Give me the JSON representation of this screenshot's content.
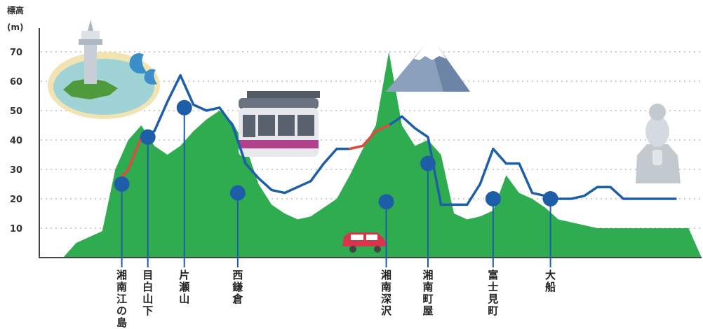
{
  "chart_data": {
    "type": "area",
    "title": "",
    "ylabel_lines": [
      "標高",
      "(m)"
    ],
    "xlabel": "",
    "ylim": [
      0,
      75
    ],
    "yticks": [
      10,
      20,
      30,
      40,
      50,
      60,
      70
    ],
    "grid": true,
    "terrain": {
      "x": [
        0,
        1,
        2,
        3,
        4,
        5,
        6,
        7,
        8,
        9,
        10,
        11,
        12,
        13,
        14,
        15,
        16,
        17,
        18,
        19,
        20,
        21,
        22,
        23,
        24,
        25,
        26,
        27,
        28,
        29,
        30,
        31,
        32,
        33,
        34,
        35,
        36,
        37,
        38,
        39,
        40,
        41,
        42,
        43,
        44,
        45,
        46,
        47,
        48,
        49
      ],
      "values": [
        0,
        5,
        7,
        9,
        30,
        40,
        45,
        38,
        35,
        38,
        43,
        47,
        50,
        46,
        38,
        25,
        18,
        15,
        13,
        14,
        17,
        20,
        28,
        37,
        45,
        70,
        45,
        38,
        40,
        35,
        15,
        13,
        14,
        16,
        28,
        22,
        20,
        17,
        13,
        12,
        11,
        10,
        10,
        10,
        10,
        10,
        10,
        10,
        10,
        0
      ],
      "color": "#2eac4f"
    },
    "track": {
      "values": [
        null,
        null,
        null,
        null,
        25,
        30,
        41,
        43,
        53,
        62,
        52,
        50,
        51,
        45,
        32,
        27,
        23,
        22,
        24,
        26,
        32,
        37,
        37,
        38,
        43,
        45,
        48,
        44,
        41,
        18,
        18,
        18,
        25,
        37,
        32,
        32,
        22,
        21,
        20,
        20,
        21,
        24,
        24,
        20,
        20,
        20,
        20,
        20,
        null,
        null
      ],
      "color": "#1e5ea8",
      "tunnel_color": "#e44b3c"
    },
    "stations": [
      "湘南江の島",
      "目白山下",
      "片瀬山",
      "西鎌倉",
      "湘南深沢",
      "湘南町屋",
      "富士見町",
      "大船"
    ],
    "station_x": [
      4.5,
      6.5,
      9.3,
      13.4,
      24.8,
      28.0,
      33.0,
      37.4
    ],
    "station_values": [
      25,
      41,
      51,
      22,
      19,
      32,
      20,
      20
    ],
    "station_color": "#1e5ea8"
  },
  "illustrations": [
    {
      "name": "enoshima-island-illustration",
      "desc": "lighthouse island"
    },
    {
      "name": "monorail-car-illustration",
      "desc": "suspended monorail"
    },
    {
      "name": "mount-fuji-illustration",
      "desc": "mountain"
    },
    {
      "name": "red-car-illustration",
      "desc": "car"
    },
    {
      "name": "kannon-statue-illustration",
      "desc": "statue"
    }
  ]
}
